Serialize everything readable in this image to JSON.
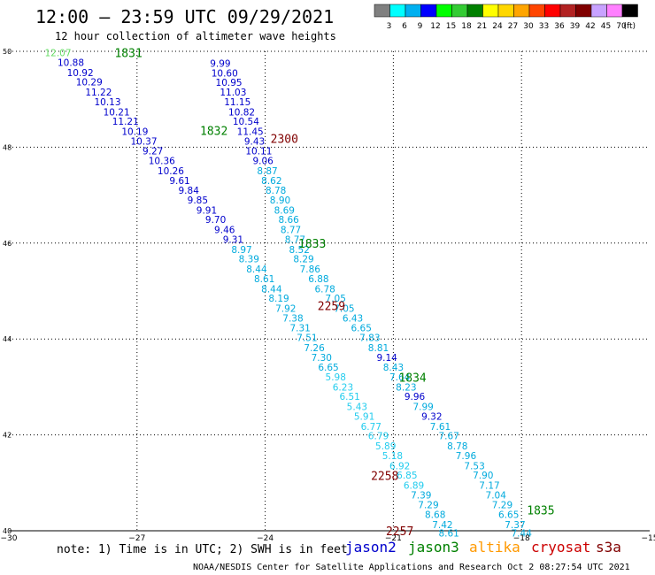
{
  "title": "12:00 – 23:59 UTC 09/29/2021",
  "subtitle": "12 hour collection of altimeter wave heights",
  "colorbar": {
    "unit": "(ft)",
    "steps": [
      {
        "label": "3",
        "color": "#808080"
      },
      {
        "label": "6",
        "color": "#00ffff"
      },
      {
        "label": "9",
        "color": "#00b0f0"
      },
      {
        "label": "12",
        "color": "#0000ff"
      },
      {
        "label": "15",
        "color": "#00ff00"
      },
      {
        "label": "18",
        "color": "#33cc33"
      },
      {
        "label": "21",
        "color": "#008000"
      },
      {
        "label": "24",
        "color": "#ffff00"
      },
      {
        "label": "27",
        "color": "#ffd700"
      },
      {
        "label": "30",
        "color": "#ffa500"
      },
      {
        "label": "33",
        "color": "#ff4500"
      },
      {
        "label": "36",
        "color": "#ff0000"
      },
      {
        "label": "39",
        "color": "#b22222"
      },
      {
        "label": "42",
        "color": "#800000"
      },
      {
        "label": "45",
        "color": "#c8a2ff"
      },
      {
        "label": "70",
        "color": "#ff80ff"
      },
      {
        "label": "",
        "color": "#000000"
      }
    ]
  },
  "note": "note: 1) Time is in UTC; 2) SWH is in feet",
  "satellites": [
    {
      "name": "jason2",
      "color": "#0000cc"
    },
    {
      "name": "jason3",
      "color": "#008000"
    },
    {
      "name": "altika",
      "color": "#ff9900"
    },
    {
      "name": "cryosat",
      "color": "#cc0000"
    },
    {
      "name": "s3a",
      "color": "#800000"
    }
  ],
  "footer": "NOAA/NESDIS Center for Satellite Applications and Research   Oct  2 08:27:54 UTC 2021",
  "chart_data": {
    "type": "scatter",
    "x_ticks": [
      -30,
      -27,
      -24,
      -21,
      -18,
      -15
    ],
    "y_ticks": [
      40,
      42,
      44,
      46,
      48,
      50
    ],
    "xlim": [
      -30,
      -15
    ],
    "ylim": [
      40,
      50
    ],
    "grid": true,
    "time_labels": [
      {
        "text": "1831",
        "lon": -27.2,
        "lat": 49.97,
        "color": "#008000"
      },
      {
        "text": "1832",
        "lon": -25.2,
        "lat": 48.35,
        "color": "#008000"
      },
      {
        "text": "2300",
        "lon": -23.55,
        "lat": 48.18,
        "color": "#800000"
      },
      {
        "text": "1833",
        "lon": -22.9,
        "lat": 46.0,
        "color": "#008000"
      },
      {
        "text": "2259",
        "lon": -22.45,
        "lat": 44.7,
        "color": "#800000"
      },
      {
        "text": "1834",
        "lon": -20.55,
        "lat": 43.2,
        "color": "#008000"
      },
      {
        "text": "2258",
        "lon": -21.2,
        "lat": 41.15,
        "color": "#800000"
      },
      {
        "text": "1835",
        "lon": -17.55,
        "lat": 40.43,
        "color": "#008000"
      },
      {
        "text": "2257",
        "lon": -20.85,
        "lat": 40.0,
        "color": "#800000"
      }
    ],
    "points": [
      {
        "lon": -28.85,
        "lat": 49.97,
        "v": "12.07",
        "c": "#66dd66"
      },
      {
        "lon": -28.55,
        "lat": 49.77,
        "v": "10.88",
        "c": "#0000cc"
      },
      {
        "lon": -28.33,
        "lat": 49.56,
        "v": "10.92",
        "c": "#0000cc"
      },
      {
        "lon": -28.12,
        "lat": 49.36,
        "v": "10.29",
        "c": "#0000cc"
      },
      {
        "lon": -27.9,
        "lat": 49.15,
        "v": "11.22",
        "c": "#0000cc"
      },
      {
        "lon": -27.69,
        "lat": 48.95,
        "v": "10.13",
        "c": "#0000cc"
      },
      {
        "lon": -27.48,
        "lat": 48.74,
        "v": "10.21",
        "c": "#0000cc"
      },
      {
        "lon": -27.27,
        "lat": 48.54,
        "v": "11.21",
        "c": "#0000cc"
      },
      {
        "lon": -27.05,
        "lat": 48.33,
        "v": "10.19",
        "c": "#0000cc"
      },
      {
        "lon": -26.84,
        "lat": 48.13,
        "v": "10.37",
        "c": "#0000cc"
      },
      {
        "lon": -26.63,
        "lat": 47.92,
        "v": "9.27",
        "c": "#0000cc"
      },
      {
        "lon": -26.42,
        "lat": 47.72,
        "v": "10.36",
        "c": "#0000cc"
      },
      {
        "lon": -26.21,
        "lat": 47.51,
        "v": "10.26",
        "c": "#0000cc"
      },
      {
        "lon": -26.0,
        "lat": 47.31,
        "v": "9.61",
        "c": "#0000cc"
      },
      {
        "lon": -25.79,
        "lat": 47.1,
        "v": "9.84",
        "c": "#0000cc"
      },
      {
        "lon": -25.58,
        "lat": 46.9,
        "v": "9.85",
        "c": "#0000cc"
      },
      {
        "lon": -25.37,
        "lat": 46.69,
        "v": "9.91",
        "c": "#0000cc"
      },
      {
        "lon": -25.16,
        "lat": 46.49,
        "v": "9.70",
        "c": "#0000cc"
      },
      {
        "lon": -24.95,
        "lat": 46.28,
        "v": "9.46",
        "c": "#0000cc"
      },
      {
        "lon": -24.75,
        "lat": 46.08,
        "v": "9.31",
        "c": "#0000cc"
      },
      {
        "lon": -24.55,
        "lat": 45.87,
        "v": "8.97",
        "c": "#00aadd"
      },
      {
        "lon": -24.38,
        "lat": 45.67,
        "v": "8.39",
        "c": "#00aadd"
      },
      {
        "lon": -24.2,
        "lat": 45.46,
        "v": "8.44",
        "c": "#00aadd"
      },
      {
        "lon": -24.02,
        "lat": 45.26,
        "v": "8.61",
        "c": "#00aadd"
      },
      {
        "lon": -23.85,
        "lat": 45.05,
        "v": "8.44",
        "c": "#00aadd"
      },
      {
        "lon": -23.68,
        "lat": 44.85,
        "v": "8.19",
        "c": "#00aadd"
      },
      {
        "lon": -23.52,
        "lat": 44.64,
        "v": "7.92",
        "c": "#00aadd"
      },
      {
        "lon": -23.35,
        "lat": 44.44,
        "v": "7.38",
        "c": "#00aadd"
      },
      {
        "lon": -23.18,
        "lat": 44.23,
        "v": "7.31",
        "c": "#00aadd"
      },
      {
        "lon": -23.02,
        "lat": 44.03,
        "v": "7.51",
        "c": "#00aadd"
      },
      {
        "lon": -22.85,
        "lat": 43.82,
        "v": "7.26",
        "c": "#00aadd"
      },
      {
        "lon": -22.68,
        "lat": 43.62,
        "v": "7.30",
        "c": "#00aadd"
      },
      {
        "lon": -22.52,
        "lat": 43.41,
        "v": "6.65",
        "c": "#00aadd"
      },
      {
        "lon": -22.35,
        "lat": 43.21,
        "v": "5.98",
        "c": "#22ccee"
      },
      {
        "lon": -22.18,
        "lat": 43.0,
        "v": "6.23",
        "c": "#22ccee"
      },
      {
        "lon": -22.02,
        "lat": 42.8,
        "v": "6.51",
        "c": "#22ccee"
      },
      {
        "lon": -21.85,
        "lat": 42.59,
        "v": "5.43",
        "c": "#22ccee"
      },
      {
        "lon": -21.68,
        "lat": 42.39,
        "v": "5.91",
        "c": "#22ccee"
      },
      {
        "lon": -21.52,
        "lat": 42.18,
        "v": "6.77",
        "c": "#22ccee"
      },
      {
        "lon": -21.35,
        "lat": 41.98,
        "v": "6.79",
        "c": "#22ccee"
      },
      {
        "lon": -21.18,
        "lat": 41.77,
        "v": "5.89",
        "c": "#22ccee"
      },
      {
        "lon": -21.02,
        "lat": 41.57,
        "v": "5.18",
        "c": "#22ccee"
      },
      {
        "lon": -20.85,
        "lat": 41.36,
        "v": "6.92",
        "c": "#22ccee"
      },
      {
        "lon": -20.68,
        "lat": 41.16,
        "v": "6.85",
        "c": "#22ccee"
      },
      {
        "lon": -20.52,
        "lat": 40.95,
        "v": "6.89",
        "c": "#22ccee"
      },
      {
        "lon": -20.35,
        "lat": 40.75,
        "v": "7.39",
        "c": "#00aadd"
      },
      {
        "lon": -20.18,
        "lat": 40.54,
        "v": "7.29",
        "c": "#00aadd"
      },
      {
        "lon": -20.02,
        "lat": 40.34,
        "v": "8.68",
        "c": "#00aadd"
      },
      {
        "lon": -19.85,
        "lat": 40.13,
        "v": "7.42",
        "c": "#00aadd"
      },
      {
        "lon": -19.7,
        "lat": 39.95,
        "v": "8.61",
        "c": "#00aadd"
      },
      {
        "lon": -25.05,
        "lat": 49.75,
        "v": "9.99",
        "c": "#0000cc"
      },
      {
        "lon": -24.95,
        "lat": 49.55,
        "v": "10.60",
        "c": "#0000cc"
      },
      {
        "lon": -24.85,
        "lat": 49.35,
        "v": "10.95",
        "c": "#0000cc"
      },
      {
        "lon": -24.75,
        "lat": 49.15,
        "v": "11.03",
        "c": "#0000cc"
      },
      {
        "lon": -24.65,
        "lat": 48.95,
        "v": "11.15",
        "c": "#0000cc"
      },
      {
        "lon": -24.55,
        "lat": 48.74,
        "v": "10.82",
        "c": "#0000cc"
      },
      {
        "lon": -24.45,
        "lat": 48.54,
        "v": "10.54",
        "c": "#0000cc"
      },
      {
        "lon": -24.35,
        "lat": 48.33,
        "v": "11.45",
        "c": "#0000cc"
      },
      {
        "lon": -24.25,
        "lat": 48.13,
        "v": "9.43",
        "c": "#0000cc"
      },
      {
        "lon": -24.15,
        "lat": 47.92,
        "v": "10.11",
        "c": "#0000cc"
      },
      {
        "lon": -24.05,
        "lat": 47.72,
        "v": "9.06",
        "c": "#0000cc"
      },
      {
        "lon": -23.95,
        "lat": 47.51,
        "v": "8.87",
        "c": "#00aadd"
      },
      {
        "lon": -23.85,
        "lat": 47.31,
        "v": "8.62",
        "c": "#00aadd"
      },
      {
        "lon": -23.75,
        "lat": 47.1,
        "v": "8.78",
        "c": "#00aadd"
      },
      {
        "lon": -23.65,
        "lat": 46.9,
        "v": "8.90",
        "c": "#00aadd"
      },
      {
        "lon": -23.55,
        "lat": 46.69,
        "v": "8.69",
        "c": "#00aadd"
      },
      {
        "lon": -23.45,
        "lat": 46.49,
        "v": "8.66",
        "c": "#00aadd"
      },
      {
        "lon": -23.4,
        "lat": 46.28,
        "v": "8.77",
        "c": "#00aadd"
      },
      {
        "lon": -23.3,
        "lat": 46.08,
        "v": "8.77",
        "c": "#00aadd"
      },
      {
        "lon": -23.2,
        "lat": 45.87,
        "v": "8.52",
        "c": "#00aadd"
      },
      {
        "lon": -23.1,
        "lat": 45.67,
        "v": "8.29",
        "c": "#00aadd"
      },
      {
        "lon": -22.95,
        "lat": 45.46,
        "v": "7.86",
        "c": "#00aadd"
      },
      {
        "lon": -22.75,
        "lat": 45.26,
        "v": "6.88",
        "c": "#00aadd"
      },
      {
        "lon": -22.6,
        "lat": 45.05,
        "v": "6.78",
        "c": "#00aadd"
      },
      {
        "lon": -22.35,
        "lat": 44.85,
        "v": "7.05",
        "c": "#00aadd"
      },
      {
        "lon": -22.15,
        "lat": 44.64,
        "v": "7.05",
        "c": "#00aadd"
      },
      {
        "lon": -21.95,
        "lat": 44.44,
        "v": "6.43",
        "c": "#00aadd"
      },
      {
        "lon": -21.75,
        "lat": 44.23,
        "v": "6.65",
        "c": "#00aadd"
      },
      {
        "lon": -21.55,
        "lat": 44.03,
        "v": "7.83",
        "c": "#00aadd"
      },
      {
        "lon": -21.35,
        "lat": 43.82,
        "v": "8.81",
        "c": "#00aadd"
      },
      {
        "lon": -21.15,
        "lat": 43.62,
        "v": "9.14",
        "c": "#0000cc"
      },
      {
        "lon": -21.0,
        "lat": 43.41,
        "v": "8.43",
        "c": "#00aadd"
      },
      {
        "lon": -20.85,
        "lat": 43.21,
        "v": "7.64",
        "c": "#00aadd"
      },
      {
        "lon": -20.7,
        "lat": 43.0,
        "v": "8.23",
        "c": "#00aadd"
      },
      {
        "lon": -20.5,
        "lat": 42.8,
        "v": "9.96",
        "c": "#0000cc"
      },
      {
        "lon": -20.3,
        "lat": 42.59,
        "v": "7.99",
        "c": "#00aadd"
      },
      {
        "lon": -20.1,
        "lat": 42.39,
        "v": "9.32",
        "c": "#0000cc"
      },
      {
        "lon": -19.9,
        "lat": 42.18,
        "v": "7.61",
        "c": "#00aadd"
      },
      {
        "lon": -19.7,
        "lat": 41.98,
        "v": "7.67",
        "c": "#00aadd"
      },
      {
        "lon": -19.5,
        "lat": 41.77,
        "v": "8.78",
        "c": "#00aadd"
      },
      {
        "lon": -19.3,
        "lat": 41.57,
        "v": "7.96",
        "c": "#00aadd"
      },
      {
        "lon": -19.1,
        "lat": 41.36,
        "v": "7.53",
        "c": "#00aadd"
      },
      {
        "lon": -18.9,
        "lat": 41.16,
        "v": "7.90",
        "c": "#00aadd"
      },
      {
        "lon": -18.75,
        "lat": 40.95,
        "v": "7.17",
        "c": "#00aadd"
      },
      {
        "lon": -18.6,
        "lat": 40.75,
        "v": "7.04",
        "c": "#00aadd"
      },
      {
        "lon": -18.45,
        "lat": 40.54,
        "v": "7.29",
        "c": "#00aadd"
      },
      {
        "lon": -18.3,
        "lat": 40.34,
        "v": "6.65",
        "c": "#00aadd"
      },
      {
        "lon": -18.15,
        "lat": 40.13,
        "v": "7.37",
        "c": "#00aadd"
      },
      {
        "lon": -18.0,
        "lat": 39.95,
        "v": "7.44",
        "c": "#00aadd"
      }
    ]
  }
}
